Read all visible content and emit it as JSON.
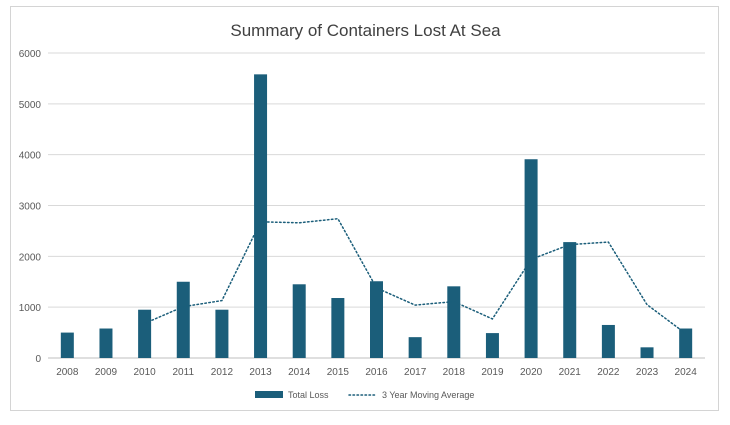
{
  "chart_data": {
    "type": "bar",
    "title": "Summary of Containers Lost At Sea",
    "xlabel": "",
    "ylabel": "",
    "categories": [
      "2008",
      "2009",
      "2010",
      "2011",
      "2012",
      "2013",
      "2014",
      "2015",
      "2016",
      "2017",
      "2018",
      "2019",
      "2020",
      "2021",
      "2022",
      "2023",
      "2024"
    ],
    "ylim": [
      0,
      6000
    ],
    "yticks": [
      0,
      1000,
      2000,
      3000,
      4000,
      5000,
      6000
    ],
    "grid": true,
    "legend_position": "bottom",
    "series": [
      {
        "name": "Total Loss",
        "type": "bar",
        "color": "#1b5e7a",
        "values": [
          500,
          580,
          950,
          1500,
          950,
          5580,
          1450,
          1180,
          1510,
          410,
          1410,
          490,
          3910,
          2280,
          650,
          210,
          580
        ]
      },
      {
        "name": "3 Year Moving Average",
        "type": "line",
        "style": "dotted",
        "color": "#1b5e7a",
        "values": [
          null,
          null,
          680,
          1010,
          1130,
          2680,
          2660,
          2740,
          1380,
          1040,
          1110,
          770,
          1940,
          2230,
          2280,
          1050,
          480
        ]
      }
    ]
  }
}
